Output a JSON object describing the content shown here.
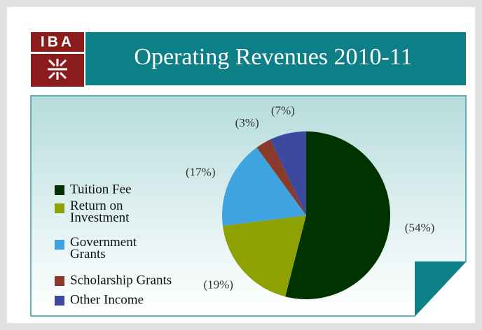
{
  "logo": {
    "text": "IBA"
  },
  "chart_data": {
    "type": "pie",
    "title": "Operating Revenues 2010-11",
    "categories": [
      "Tuition Fee",
      "Return on Investment",
      "Government Grants",
      "Scholarship Grants",
      "Other Income"
    ],
    "values": [
      54,
      19,
      17,
      3,
      7
    ],
    "value_labels": [
      "(54%)",
      "(19%)",
      "(17%)",
      "(3%)",
      "(7%)"
    ],
    "colors": [
      "#003300",
      "#8da200",
      "#3ea3df",
      "#8a3a2b",
      "#3b4a9e"
    ],
    "legend": "left"
  }
}
